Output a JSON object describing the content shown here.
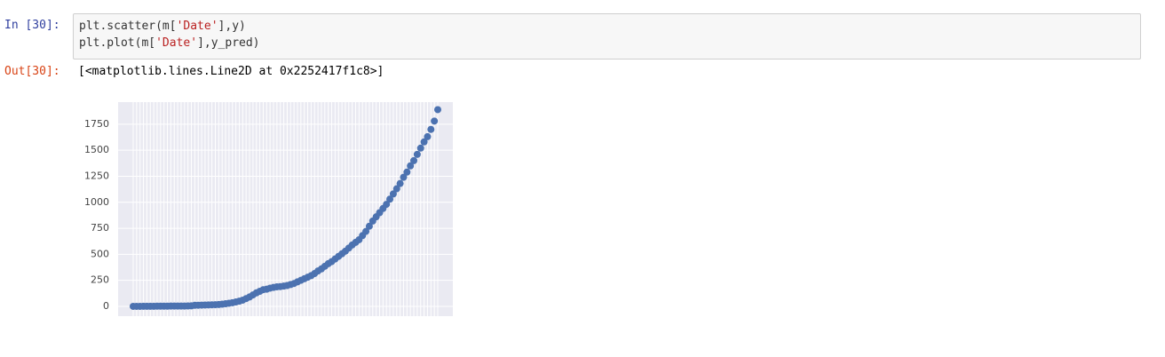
{
  "cell": {
    "in_prompt": "In [30]:",
    "code": [
      [
        "plt.scatter(m[",
        "'Date'",
        "],y)"
      ],
      [
        "plt.plot(m[",
        "'Date'",
        "],y_pred)"
      ]
    ],
    "out_prompt": "Out[30]:",
    "output": "[<matplotlib.lines.Line2D at 0x2252417f1c8>]"
  },
  "chart_data": {
    "type": "scatter",
    "color": "#4c72b0",
    "grid": true,
    "categories": [
      null,
      null,
      null,
      null,
      null,
      null,
      null,
      null,
      null,
      null,
      null,
      null,
      null,
      null,
      null,
      null,
      null,
      null,
      null,
      null,
      null,
      null,
      null,
      null,
      null,
      null,
      null,
      null,
      null,
      null,
      null,
      null,
      null,
      null,
      null,
      null,
      null,
      null,
      null,
      null,
      null,
      null,
      null,
      null,
      null,
      null,
      null,
      null,
      null,
      null,
      null,
      null,
      null,
      null,
      null,
      null,
      null,
      null,
      null,
      null,
      null,
      null,
      null,
      null,
      null,
      null,
      null,
      null,
      null,
      null,
      null,
      null,
      null,
      null,
      null,
      null,
      null,
      null,
      null,
      null,
      null,
      null,
      null,
      null,
      null,
      null,
      null,
      null,
      null,
      null
    ],
    "values": [
      0,
      0,
      0,
      1,
      1,
      1,
      1,
      2,
      2,
      2,
      2,
      3,
      3,
      3,
      3,
      3,
      4,
      5,
      10,
      11,
      12,
      13,
      14,
      15,
      16,
      18,
      21,
      25,
      30,
      35,
      42,
      50,
      60,
      75,
      90,
      110,
      130,
      145,
      160,
      165,
      175,
      182,
      188,
      190,
      195,
      200,
      210,
      220,
      235,
      250,
      265,
      280,
      295,
      315,
      340,
      360,
      385,
      410,
      430,
      455,
      480,
      505,
      530,
      560,
      590,
      615,
      640,
      680,
      720,
      770,
      820,
      860,
      900,
      940,
      980,
      1030,
      1080,
      1130,
      1180,
      1240,
      1290,
      1350,
      1400,
      1460,
      1520,
      1580,
      1630,
      1700,
      1780,
      1890
    ],
    "ylim": [
      -94,
      1962
    ],
    "yticks": [
      0,
      250,
      500,
      750,
      1000,
      1250,
      1500,
      1750
    ]
  }
}
